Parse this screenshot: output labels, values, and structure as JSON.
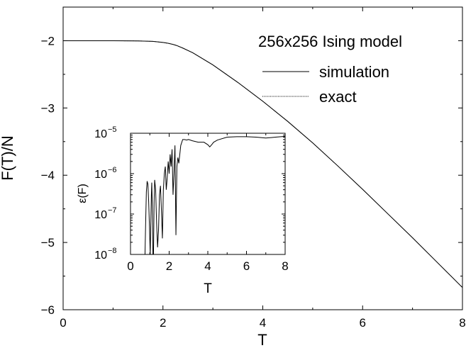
{
  "chart_data": [
    {
      "type": "line",
      "title": "",
      "xlabel": "T",
      "ylabel": "F(T)/N",
      "xlim": [
        0,
        8
      ],
      "ylim": [
        -6,
        -1.5
      ],
      "xticks": [
        "0",
        "2",
        "4",
        "6",
        "8"
      ],
      "yticks": [
        "−2",
        "−3",
        "−4",
        "−5",
        "−6"
      ],
      "legend_title": "256x256 Ising model",
      "legend_placement": "top-right",
      "series": [
        {
          "name": "simulation",
          "style": "solid",
          "x": [
            0,
            0.5,
            1.0,
            1.5,
            1.8,
            2.0,
            2.1,
            2.2,
            2.27,
            2.4,
            2.6,
            3.0,
            3.5,
            4.0,
            4.5,
            5.0,
            5.5,
            6.0,
            6.5,
            7.0,
            7.5,
            8.0
          ],
          "y": [
            -2.0,
            -2.0,
            -2.0,
            -2.003,
            -2.01,
            -2.025,
            -2.038,
            -2.055,
            -2.07,
            -2.11,
            -2.18,
            -2.36,
            -2.62,
            -2.9,
            -3.2,
            -3.52,
            -3.86,
            -4.21,
            -4.57,
            -4.93,
            -5.3,
            -5.67
          ]
        },
        {
          "name": "exact",
          "style": "dotted",
          "x": [
            0,
            0.5,
            1.0,
            1.5,
            1.8,
            2.0,
            2.1,
            2.2,
            2.27,
            2.4,
            2.6,
            3.0,
            3.5,
            4.0,
            4.5,
            5.0,
            5.5,
            6.0,
            6.5,
            7.0,
            7.5,
            8.0
          ],
          "y": [
            -2.0,
            -2.0,
            -2.0,
            -2.003,
            -2.01,
            -2.025,
            -2.038,
            -2.055,
            -2.07,
            -2.11,
            -2.18,
            -2.36,
            -2.62,
            -2.9,
            -3.2,
            -3.52,
            -3.86,
            -4.21,
            -4.57,
            -4.93,
            -5.3,
            -5.67
          ]
        }
      ]
    },
    {
      "type": "line",
      "title": "",
      "xlabel": "T",
      "ylabel": "ε(F)",
      "xlim": [
        0,
        8
      ],
      "ylim": [
        1e-08,
        1e-05
      ],
      "yscale": "log",
      "xticks": [
        "0",
        "2",
        "4",
        "6",
        "8"
      ],
      "yticks": [
        {
          "mantissa": "10",
          "exponent": "−5"
        },
        {
          "mantissa": "10",
          "exponent": "−6"
        },
        {
          "mantissa": "10",
          "exponent": "−7"
        },
        {
          "mantissa": "10",
          "exponent": "−8"
        }
      ],
      "series": [
        {
          "name": "",
          "x": [
            0.75,
            0.78,
            0.82,
            0.86,
            0.9,
            0.94,
            0.98,
            1.02,
            1.05,
            1.08,
            1.1,
            1.13,
            1.16,
            1.19,
            1.22,
            1.25,
            1.3,
            1.35,
            1.4,
            1.45,
            1.5,
            1.55,
            1.6,
            1.65,
            1.7,
            1.75,
            1.8,
            1.85,
            1.9,
            1.95,
            2.0,
            2.05,
            2.1,
            2.15,
            2.2,
            2.25,
            2.3,
            2.35,
            2.4,
            2.45,
            2.5,
            2.6,
            2.7,
            2.8,
            2.9,
            3.0,
            3.2,
            3.5,
            3.8,
            4.0,
            4.1,
            4.2,
            4.3,
            4.5,
            5.0,
            5.5,
            6.0,
            6.5,
            7.0,
            7.5,
            8.0
          ],
          "y": [
            1e-08,
            5e-08,
            3.5e-07,
            6.5e-07,
            5.5e-07,
            2e-07,
            5e-08,
            1e-08,
            6e-08,
            3e-07,
            6e-07,
            1.5e-07,
            1e-08,
            1e-08,
            2e-07,
            7e-07,
            4e-07,
            6e-08,
            1.5e-08,
            4e-08,
            3e-07,
            5e-07,
            1.2e-07,
            2.5e-08,
            4e-07,
            1e-06,
            1.5e-06,
            4e-07,
            8e-07,
            2e-06,
            1e-06,
            3e-06,
            1.5e-06,
            4e-06,
            3e-07,
            1e-06,
            5e-06,
            3e-08,
            1.5e-06,
            2.5e-06,
            1.8e-06,
            5e-06,
            7e-06,
            7e-06,
            6.8e-06,
            7e-06,
            6.5e-06,
            6e-06,
            6e-06,
            5.2e-06,
            4.6e-06,
            5.2e-06,
            6e-06,
            6.8e-06,
            8e-06,
            8.2e-06,
            8.2e-06,
            8e-06,
            7.6e-06,
            8e-06,
            8.4e-06
          ]
        }
      ]
    }
  ]
}
